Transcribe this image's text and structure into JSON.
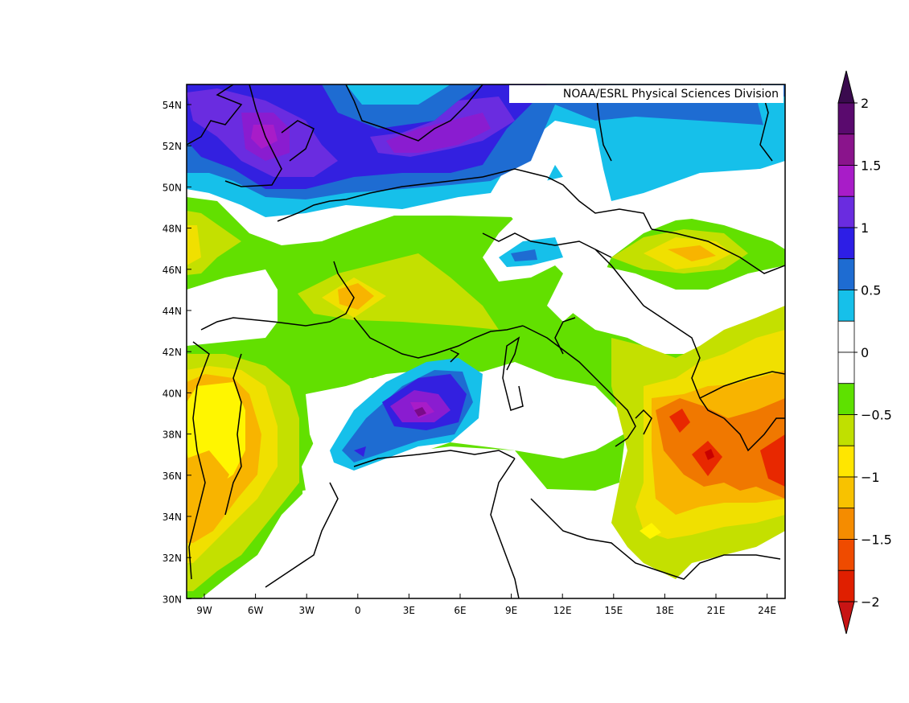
{
  "credit": "NOAA/ESRL Physical Sciences Division",
  "map": {
    "lat_labels": [
      "54N",
      "52N",
      "50N",
      "48N",
      "46N",
      "44N",
      "42N",
      "40N",
      "38N",
      "36N",
      "34N",
      "32N",
      "30N"
    ],
    "lon_labels": [
      "9W",
      "6W",
      "3W",
      "0",
      "3E",
      "6E",
      "9E",
      "12E",
      "15E",
      "18E",
      "21E",
      "24E"
    ]
  },
  "colorbar": {
    "labels": [
      "2",
      "1.5",
      "1",
      "0.5",
      "0",
      "−0.5",
      "−1",
      "−1.5",
      "−2"
    ],
    "colors": [
      "#5a0a6e",
      "#8a148c",
      "#a81cc8",
      "#6a2ce0",
      "#2d1ee6",
      "#1e6cd2",
      "#16c0ea",
      "#ffffff",
      "#ffffff",
      "#5ee100",
      "#c0e000",
      "#ffe600",
      "#f8c200",
      "#f58c00",
      "#ef4b00",
      "#e01f00"
    ],
    "top_arrow_color": "#3a0a4e",
    "bottom_arrow_color": "#c81414"
  },
  "colors": {
    "anom_neg_2": "#e82800",
    "anom_neg_1_75": "#f07800",
    "anom_neg_1_5": "#f8b400",
    "anom_neg_1": "#fff600",
    "anom_neg_0_75": "#f0e000",
    "anom_neg_0_5": "#c4e000",
    "anom_neg_0_25": "#62e000",
    "anom_pos_0_25": "#16c0ea",
    "anom_pos_0_5": "#1e6cd2",
    "anom_pos_0_75": "#3320e0",
    "anom_pos_1": "#6a2ce0",
    "anom_pos_1_25": "#8a1cd0",
    "anom_pos_1_5": "#a81cc8",
    "anom_pos_2": "#7a0a8a"
  }
}
